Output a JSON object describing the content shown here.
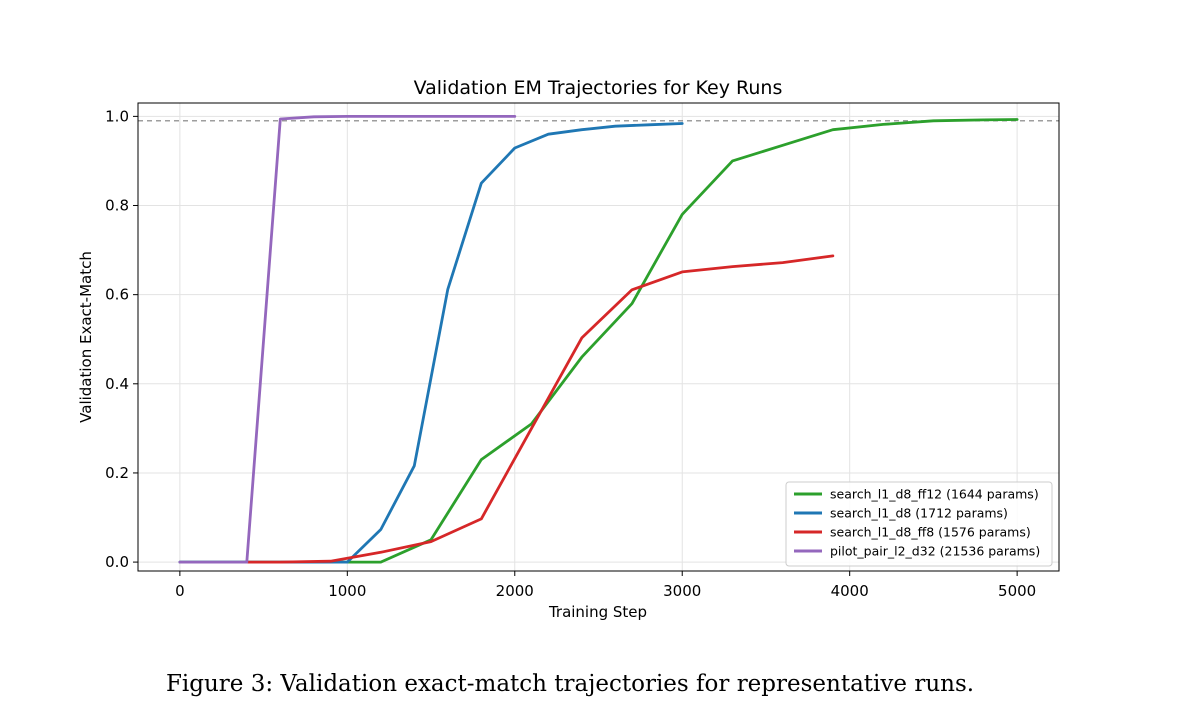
{
  "chart_data": {
    "type": "line",
    "title": "Validation EM Trajectories for Key Runs",
    "xlabel": "Training Step",
    "ylabel": "Validation Exact-Match",
    "xlim": [
      -250,
      5250
    ],
    "ylim": [
      -0.02,
      1.03
    ],
    "xticks": [
      0,
      1000,
      2000,
      3000,
      4000,
      5000
    ],
    "yticks": [
      0.0,
      0.2,
      0.4,
      0.6,
      0.8,
      1.0
    ],
    "xtick_labels": [
      "0",
      "1000",
      "2000",
      "3000",
      "4000",
      "5000"
    ],
    "ytick_labels": [
      "0.0",
      "0.2",
      "0.4",
      "0.6",
      "0.8",
      "1.0"
    ],
    "grid": true,
    "legend_position": "lower-right",
    "reference_line": {
      "y": 0.99,
      "style": "dashed",
      "color": "#7f7f7f"
    },
    "series": [
      {
        "name": "search_l1_d8_ff12 (1644 params)",
        "color": "#2ca02c",
        "x": [
          0,
          400,
          900,
          1200,
          1500,
          1800,
          2100,
          2400,
          2700,
          3000,
          3300,
          3600,
          3900,
          4200,
          4500,
          4800,
          5000
        ],
        "y": [
          0.0,
          0.0,
          0.0,
          0.0,
          0.05,
          0.23,
          0.31,
          0.46,
          0.58,
          0.78,
          0.9,
          0.935,
          0.97,
          0.982,
          0.99,
          0.992,
          0.993
        ]
      },
      {
        "name": "search_l1_d8 (1712 params)",
        "color": "#1f77b4",
        "x": [
          0,
          1000,
          1200,
          1400,
          1600,
          1800,
          2000,
          2200,
          2400,
          2600,
          2800,
          3000
        ],
        "y": [
          0.0,
          0.0,
          0.073,
          0.216,
          0.612,
          0.85,
          0.929,
          0.96,
          0.97,
          0.978,
          0.981,
          0.984
        ]
      },
      {
        "name": "search_l1_d8_ff8 (1576 params)",
        "color": "#d62728",
        "x": [
          400,
          600,
          900,
          1200,
          1500,
          1800,
          2100,
          2400,
          2700,
          3000,
          3300,
          3600,
          3900
        ],
        "y": [
          0.0,
          0.0,
          0.002,
          0.022,
          0.046,
          0.097,
          0.3,
          0.503,
          0.611,
          0.651,
          0.663,
          0.672,
          0.687
        ]
      },
      {
        "name": "pilot_pair_l2_d32 (21536 params)",
        "color": "#9467bd",
        "x": [
          0,
          400,
          600,
          800,
          1000,
          1200,
          1400,
          1600,
          1800,
          2000
        ],
        "y": [
          0.0,
          0.0,
          0.994,
          0.999,
          1.0,
          1.0,
          1.0,
          1.0,
          1.0,
          1.0
        ]
      }
    ]
  },
  "caption": "Figure 3: Validation exact-match trajectories for representative runs."
}
